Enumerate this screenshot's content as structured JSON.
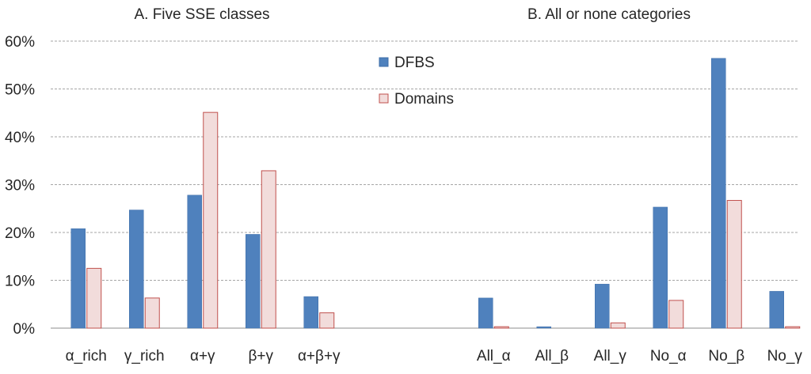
{
  "colors": {
    "dfbs_fill": "#4F81BD",
    "dfbs_stroke": "#3D6DA8",
    "domains_fill": "#F2DCDB",
    "domains_stroke": "#C0504D",
    "grid": "#A6A6A6",
    "axis": "#8C8C8C",
    "text": "#262626"
  },
  "chart_data": {
    "type": "bar",
    "ylim": [
      0,
      0.6
    ],
    "yticks": [
      0,
      0.1,
      0.2,
      0.3,
      0.4,
      0.5,
      0.6
    ],
    "ytick_labels": [
      "0%",
      "10%",
      "20%",
      "30%",
      "40%",
      "50%",
      "60%"
    ],
    "grid": true,
    "legend_position": "top-center",
    "legend": [
      "DFBS",
      "Domains"
    ],
    "panels": [
      {
        "title": "A. Five SSE classes",
        "categories": [
          "α_rich",
          "γ_rich",
          "α+γ",
          "β+γ",
          "α+β+γ"
        ],
        "series": [
          {
            "name": "DFBS",
            "values": [
              0.208,
              0.247,
              0.278,
              0.196,
              0.066
            ]
          },
          {
            "name": "Domains",
            "values": [
              0.125,
              0.063,
              0.451,
              0.329,
              0.032
            ]
          }
        ]
      },
      {
        "title": "B. All or none categories",
        "categories": [
          "All_α",
          "All_β",
          "All_γ",
          "No_α",
          "No_β",
          "No_γ"
        ],
        "series": [
          {
            "name": "DFBS",
            "values": [
              0.063,
              0.003,
              0.092,
              0.253,
              0.564,
              0.077
            ]
          },
          {
            "name": "Domains",
            "values": [
              0.003,
              0.0,
              0.011,
              0.058,
              0.267,
              0.003
            ]
          }
        ]
      }
    ]
  }
}
